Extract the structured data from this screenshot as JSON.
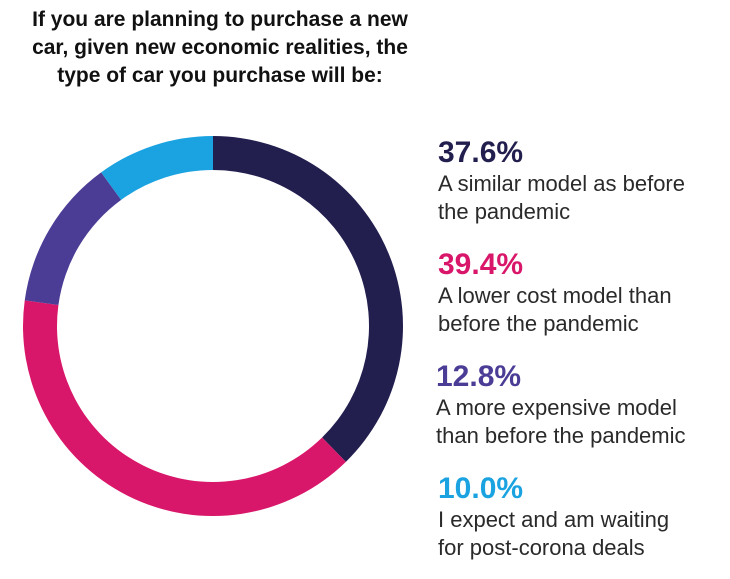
{
  "chart_data": {
    "type": "pie",
    "variant": "donut",
    "title_lines": [
      "If you are planning to purchase a new",
      "car, given new economic realities, the",
      "type of car you purchase will be:"
    ],
    "slices": [
      {
        "value": 37.6,
        "value_label": "37.6%",
        "label_lines": [
          "A similar model as before",
          "the pandemic"
        ],
        "color": "#221f4f"
      },
      {
        "value": 39.4,
        "value_label": "39.4%",
        "label_lines": [
          "A lower cost model than",
          "before the pandemic"
        ],
        "color": "#d9176a"
      },
      {
        "value": 12.8,
        "value_label": "12.8%",
        "label_lines": [
          "A more expensive model",
          "than before the pandemic"
        ],
        "color": "#4b3d96"
      },
      {
        "value": 10.0,
        "value_label": "10.0%",
        "label_lines": [
          "I expect and am waiting",
          "for post-corona deals"
        ],
        "color": "#1aa3e0"
      }
    ]
  }
}
